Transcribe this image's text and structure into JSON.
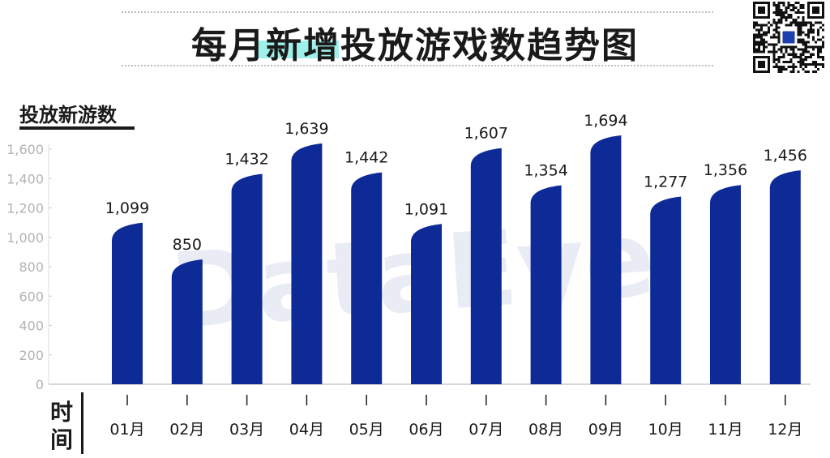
{
  "page": {
    "title": "每月新增投放游戏数趋势图",
    "watermark": "DataEye",
    "accent_color": "#0e2a97",
    "highlight_color": "#9ff0ea"
  },
  "chart_data": {
    "type": "bar",
    "title": "每月新增投放游戏数趋势图",
    "ylabel": "投放新游数",
    "xlabel": "时间",
    "categories": [
      "01月",
      "02月",
      "03月",
      "04月",
      "05月",
      "06月",
      "07月",
      "08月",
      "09月",
      "10月",
      "11月",
      "12月"
    ],
    "values": [
      1099,
      850,
      1432,
      1639,
      1442,
      1091,
      1607,
      1354,
      1694,
      1277,
      1356,
      1456
    ],
    "data_labels": [
      "1,099",
      "850",
      "1,432",
      "1,639",
      "1,442",
      "1,091",
      "1,607",
      "1,354",
      "1,694",
      "1,277",
      "1,356",
      "1,456"
    ],
    "y_ticks": [
      0,
      200,
      400,
      600,
      800,
      1000,
      1200,
      1400,
      1600
    ],
    "y_tick_labels": [
      "0",
      "200",
      "400",
      "600",
      "800",
      "1,000",
      "1,200",
      "1,400",
      "1,600"
    ],
    "ylim": [
      0,
      1700
    ],
    "grid": false,
    "legend": "none",
    "bar_color": "#0e2a97"
  }
}
